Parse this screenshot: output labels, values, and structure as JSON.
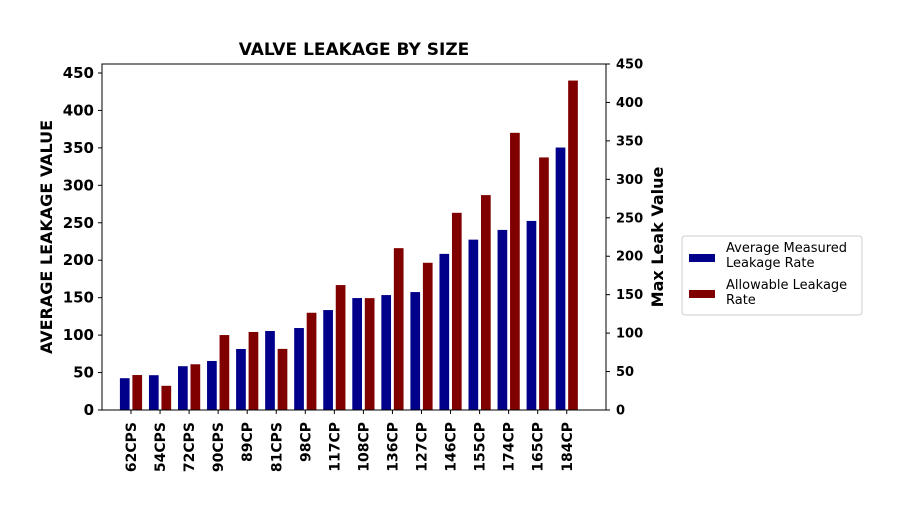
{
  "chart_data": {
    "type": "bar",
    "title": "VALVE LEAKAGE BY SIZE",
    "ylabel_left": "AVERAGE LEAKAGE VALUE",
    "ylabel_right": "Max Leak Value",
    "categories": [
      "62CPS",
      "54CPS",
      "72CPS",
      "90CPS",
      "89CP",
      "81CPS",
      "98CP",
      "117CP",
      "108CP",
      "136CP",
      "127CP",
      "146CP",
      "155CP",
      "174CP",
      "165CP",
      "184CP"
    ],
    "ylim_left": [
      0,
      462
    ],
    "yticks_left": [
      0,
      50,
      100,
      150,
      200,
      250,
      300,
      350,
      400,
      450
    ],
    "ylim_right": [
      0,
      450
    ],
    "yticks_right": [
      0,
      50,
      100,
      150,
      200,
      250,
      300,
      350,
      400,
      450
    ],
    "series": [
      {
        "name": "Average Measured Leakage Rate",
        "legend_lines": [
          "Average Measured",
          "Leakage Rate"
        ],
        "axis": "left",
        "color": "#00008b",
        "values": [
          43,
          47,
          59,
          66,
          82,
          106,
          110,
          134,
          150,
          154,
          158,
          209,
          228,
          241,
          253,
          351
        ]
      },
      {
        "name": "Allowable Leakage Rate",
        "legend_lines": [
          "Allowable Leakage",
          "Rate"
        ],
        "axis": "right",
        "color": "#800000",
        "values": [
          46,
          32,
          60,
          98,
          102,
          80,
          127,
          163,
          146,
          211,
          192,
          257,
          280,
          361,
          329,
          429
        ]
      }
    ],
    "legend_position": "right",
    "grid": false
  }
}
